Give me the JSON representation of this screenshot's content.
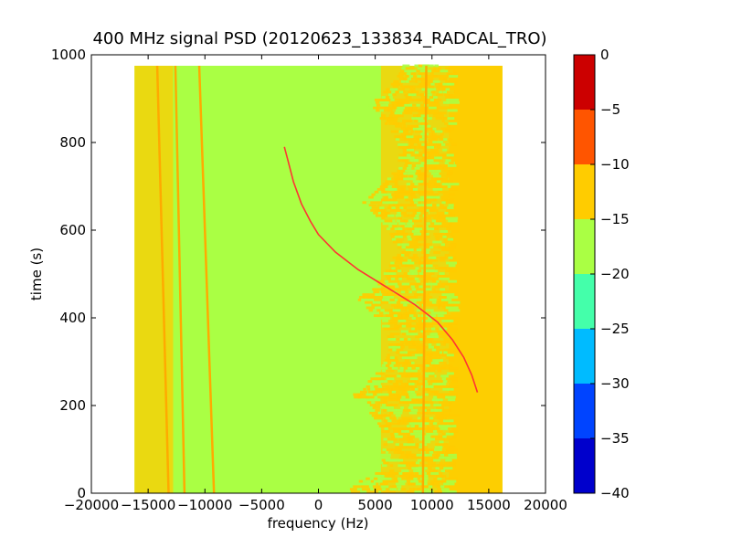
{
  "chart_data": {
    "type": "heatmap",
    "title": "400 MHz signal PSD (20120623_133834_RADCAL_TRO)",
    "xlabel": "frequency (Hz)",
    "ylabel": "time (s)",
    "xlim": [
      -20000,
      20000
    ],
    "ylim": [
      0,
      1000
    ],
    "xticks": [
      -20000,
      -15000,
      -10000,
      -5000,
      0,
      5000,
      10000,
      15000,
      20000
    ],
    "yticks": [
      0,
      200,
      400,
      600,
      800,
      1000
    ],
    "data_extent": {
      "x": [
        -16200,
        16200
      ],
      "y": [
        0,
        975
      ]
    },
    "colorbar": {
      "levels": [
        -40,
        -35,
        -30,
        -25,
        -20,
        -15,
        -10,
        -5,
        0
      ],
      "colors": [
        "#0000cc",
        "#0044ff",
        "#00bbff",
        "#44ffaa",
        "#aaff44",
        "#ffcc00",
        "#ff5500",
        "#cc0000"
      ]
    },
    "background_level_color": "#aaff44",
    "noise_level_color": "#ffcc00",
    "signal_color": "#ff3333",
    "bands": [
      {
        "x0": -16200,
        "x1": -12800,
        "level_range": [
          -15,
          -10
        ]
      },
      {
        "x0": 5500,
        "x1": 16200,
        "level_range": [
          -15,
          -10
        ]
      },
      {
        "x0": 11500,
        "x1": 16200,
        "level_range": [
          -15,
          -10
        ]
      }
    ],
    "lines": [
      {
        "points": [
          [
            -10500,
            975
          ],
          [
            -9200,
            0
          ]
        ]
      },
      {
        "points": [
          [
            -12600,
            975
          ],
          [
            -11800,
            0
          ]
        ]
      },
      {
        "points": [
          [
            -14200,
            975
          ],
          [
            -13200,
            0
          ]
        ]
      },
      {
        "points": [
          [
            9500,
            975
          ],
          [
            9200,
            0
          ]
        ]
      }
    ],
    "doppler_trace": [
      [
        -3000,
        790
      ],
      [
        -2700,
        760
      ],
      [
        -2200,
        710
      ],
      [
        -1500,
        660
      ],
      [
        -700,
        620
      ],
      [
        0,
        590
      ],
      [
        1500,
        550
      ],
      [
        3500,
        510
      ],
      [
        6000,
        470
      ],
      [
        8500,
        430
      ],
      [
        10500,
        390
      ],
      [
        11800,
        350
      ],
      [
        12800,
        310
      ],
      [
        13500,
        270
      ],
      [
        14000,
        230
      ]
    ]
  }
}
